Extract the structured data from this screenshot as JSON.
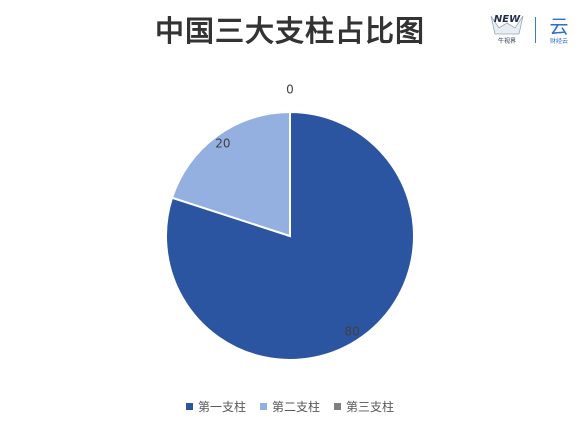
{
  "header": {
    "title": "中国三大支柱占比图",
    "logo_new": "NEW",
    "logo_new_sub": "牛视界",
    "logo_yun": "云",
    "logo_yun_sub": "财经云"
  },
  "chart_data": {
    "type": "pie",
    "title": "中国三大支柱占比图",
    "categories": [
      "第一支柱",
      "第二支柱",
      "第三支柱"
    ],
    "values": [
      80,
      20,
      0
    ],
    "colors": [
      "#2c55a1",
      "#93b0e0",
      "#7f7f7f"
    ],
    "data_labels": [
      "80",
      "20",
      "0"
    ],
    "legend_position": "bottom"
  }
}
